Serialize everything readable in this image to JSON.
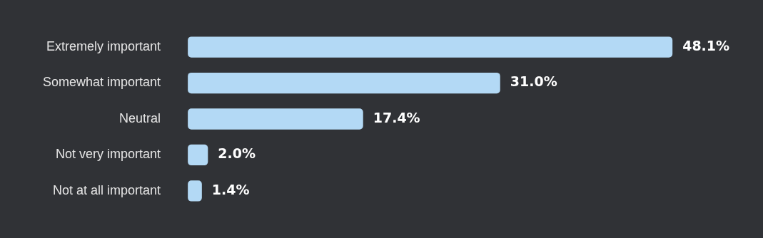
{
  "chart_data": {
    "type": "bar",
    "orientation": "horizontal",
    "categories": [
      "Extremely important",
      "Somewhat important",
      "Neutral",
      "Not very important",
      "Not at all important"
    ],
    "values": [
      48.1,
      31.0,
      17.4,
      2.0,
      1.4
    ],
    "value_labels": [
      "48.1%",
      "31.0%",
      "17.4%",
      "2.0%",
      "1.4%"
    ],
    "color": "#b3d9f5"
  }
}
